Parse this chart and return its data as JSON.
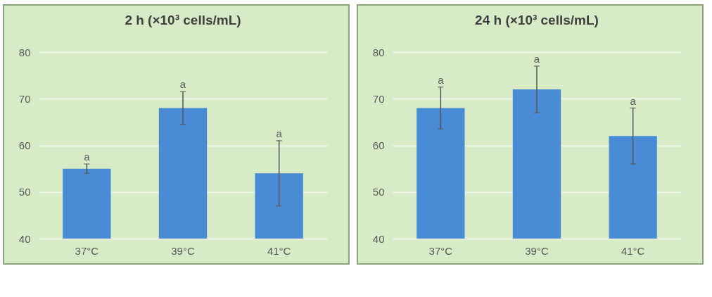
{
  "chart_data": [
    {
      "type": "bar",
      "title": "2 h (×10³ cells/mL)",
      "categories": [
        "37°C",
        "39°C",
        "41°C"
      ],
      "values": [
        55,
        68,
        54
      ],
      "errors": [
        1,
        3.5,
        7
      ],
      "color": "#4a8bd6",
      "ylim": [
        40,
        80
      ],
      "yticks": [
        40,
        50,
        60,
        70,
        80
      ],
      "grid": "y",
      "annotations": [
        {
          "text": "a",
          "x": "37°C",
          "y": 56
        },
        {
          "text": "a",
          "x": "39°C",
          "y": 71.5
        },
        {
          "text": "a",
          "x": "41°C",
          "y": 61
        }
      ]
    },
    {
      "type": "bar",
      "title": "24 h (×10³ cells/mL)",
      "categories": [
        "37°C",
        "39°C",
        "41°C"
      ],
      "values": [
        68,
        72,
        62
      ],
      "errors": [
        4.5,
        5,
        6
      ],
      "color": "#4a8bd6",
      "ylim": [
        40,
        80
      ],
      "yticks": [
        40,
        50,
        60,
        70,
        80
      ],
      "grid": "y",
      "annotations": [
        {
          "text": "a",
          "x": "37°C",
          "y": 72.5
        },
        {
          "text": "a",
          "x": "39°C",
          "y": 77
        },
        {
          "text": "a",
          "x": "41°C",
          "y": 68
        }
      ]
    }
  ]
}
